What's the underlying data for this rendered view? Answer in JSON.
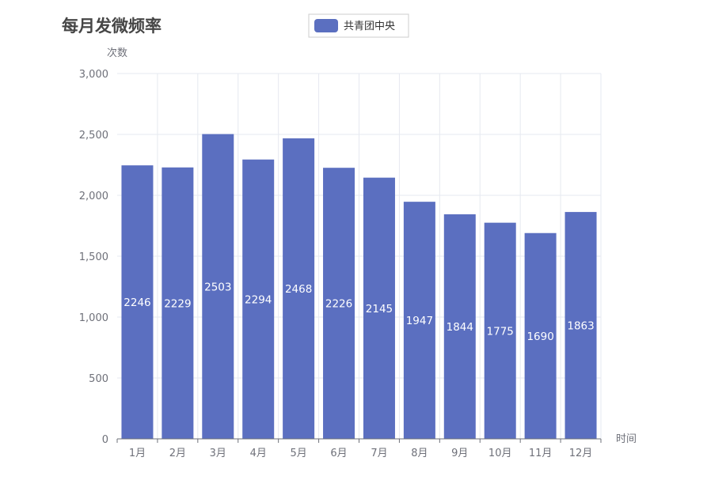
{
  "chart_data": {
    "type": "bar",
    "title": "每月发微频率",
    "ylabel": "次数",
    "xlabel": "时间",
    "categories": [
      "1月",
      "2月",
      "3月",
      "4月",
      "5月",
      "6月",
      "7月",
      "8月",
      "9月",
      "10月",
      "11月",
      "12月"
    ],
    "series": [
      {
        "name": "共青团中央",
        "values": [
          2246,
          2229,
          2503,
          2294,
          2468,
          2226,
          2145,
          1947,
          1844,
          1775,
          1690,
          1863
        ],
        "color": "#5b6fc0"
      }
    ],
    "ylim": [
      0,
      3000
    ],
    "yticks": [
      0,
      500,
      1000,
      1500,
      2000,
      2500,
      3000
    ],
    "ytick_labels": [
      "0",
      "500",
      "1,000",
      "1,500",
      "2,000",
      "2,500",
      "3,000"
    ],
    "grid": true,
    "legend_position": "top-center",
    "data_labels": "inside-middle"
  }
}
